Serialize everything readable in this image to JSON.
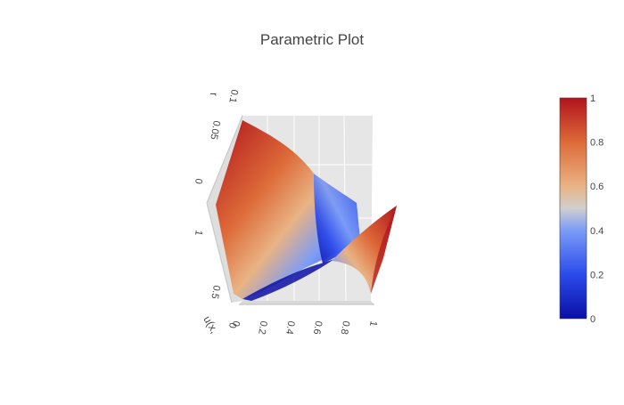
{
  "chart_data": {
    "type": "surface",
    "title": "Parametric Plot",
    "axes": {
      "x": {
        "label": "u(x,",
        "ticks": [
          "0",
          "0.2",
          "0.4",
          "0.6",
          "0.8",
          "1"
        ],
        "range": [
          0,
          1
        ]
      },
      "y": {
        "label": "",
        "ticks": [
          "0",
          "0.5",
          "1"
        ],
        "range": [
          0,
          1
        ]
      },
      "z": {
        "label": "r",
        "ticks": [
          "0",
          "0.05",
          "0.1"
        ],
        "range": [
          0,
          0.1
        ]
      }
    },
    "colorbar": {
      "ticks": [
        "0",
        "0.2",
        "0.4",
        "0.6",
        "0.8",
        "1"
      ],
      "range": [
        0,
        1
      ],
      "colorscale": [
        [
          0,
          "#0a0fa6"
        ],
        [
          0.2,
          "#2b4bea"
        ],
        [
          0.4,
          "#7b9cf7"
        ],
        [
          0.5,
          "#cfcfcf"
        ],
        [
          0.6,
          "#e9b384"
        ],
        [
          0.8,
          "#dd6a38"
        ],
        [
          1,
          "#b0141d"
        ]
      ]
    },
    "grid": true
  }
}
